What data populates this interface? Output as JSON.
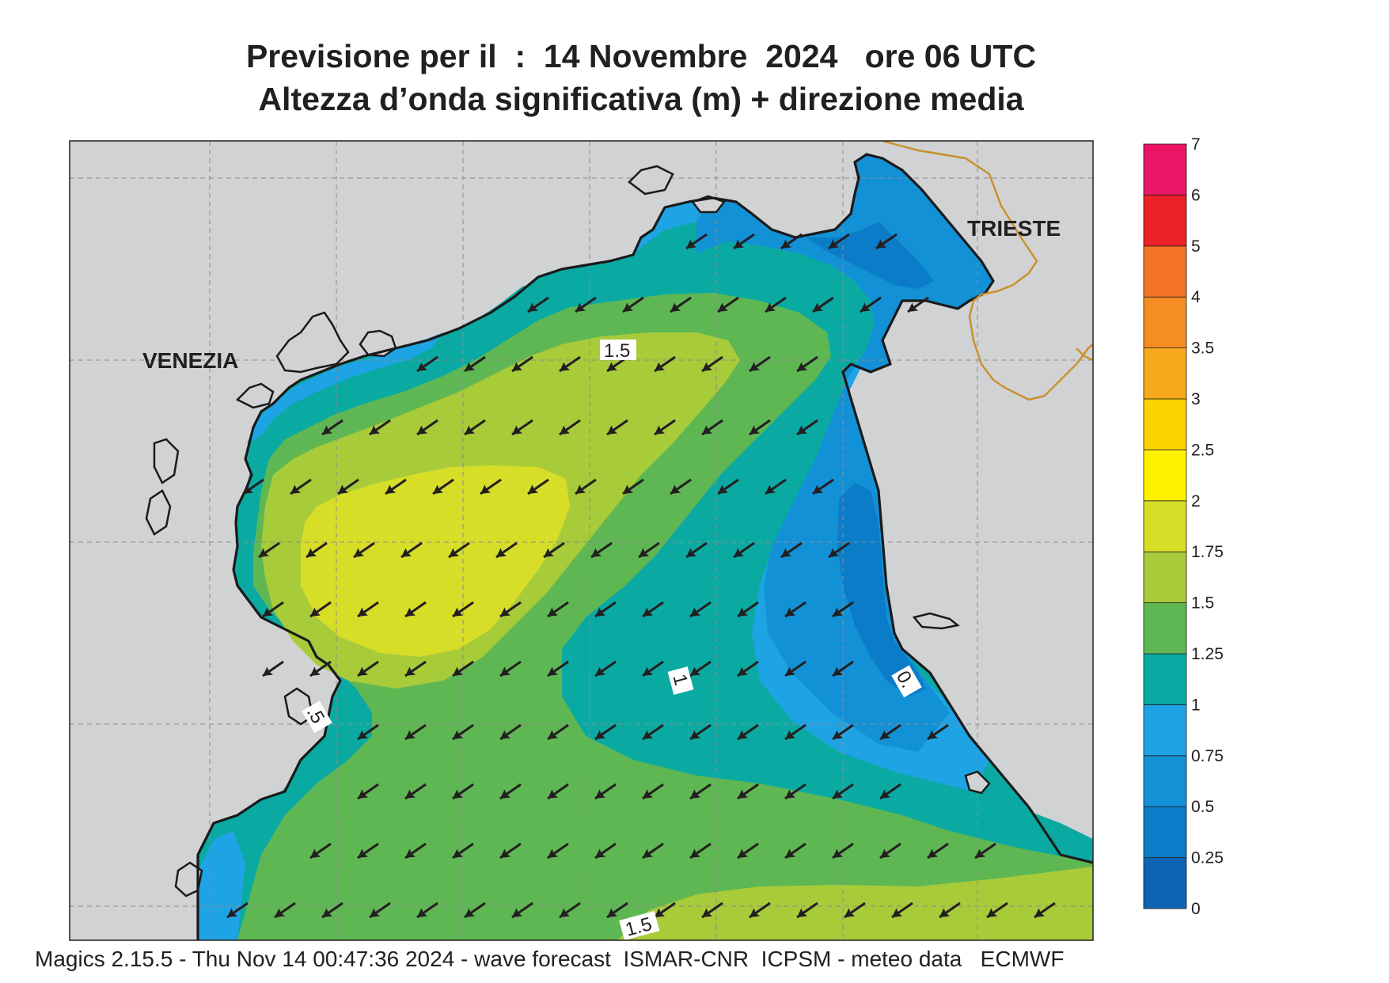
{
  "title": {
    "line1": "Previsione per il  :  14 Novembre  2024   ore 06 UTC",
    "line2": "Altezza d’onda significativa (m) + direzione media"
  },
  "footer": "Magics 2.15.5 - Thu Nov 14 00:47:36 2024 - wave forecast  ISMAR-CNR  ICPSM - meteo data   ECMWF",
  "cities": [
    {
      "name": "VENEZIA"
    },
    {
      "name": "TRIESTE"
    }
  ],
  "contour_labels": [
    "1.5",
    "1.5",
    "1",
    ".5",
    "0."
  ],
  "colors": {
    "land": "#d1d2d4",
    "coast": "#1a1a1a",
    "border": "#c9922f",
    "arrow": "#231f20"
  },
  "legend": {
    "levels": [
      "0",
      "0.25",
      "0.5",
      "0.75",
      "1",
      "1.25",
      "1.5",
      "1.75",
      "2",
      "2.5",
      "3",
      "3.5",
      "4",
      "5",
      "6",
      "7"
    ],
    "colors": [
      "#0c64b3",
      "#0b7cc7",
      "#1391d7",
      "#1ea4e4",
      "#0aaaa3",
      "#5fb753",
      "#a8cb3a",
      "#d6de28",
      "#fff200",
      "#fcd200",
      "#f7a81c",
      "#f58d22",
      "#f37426",
      "#ec2127",
      "#ea1564"
    ]
  },
  "wave_direction": "toward south-west"
}
